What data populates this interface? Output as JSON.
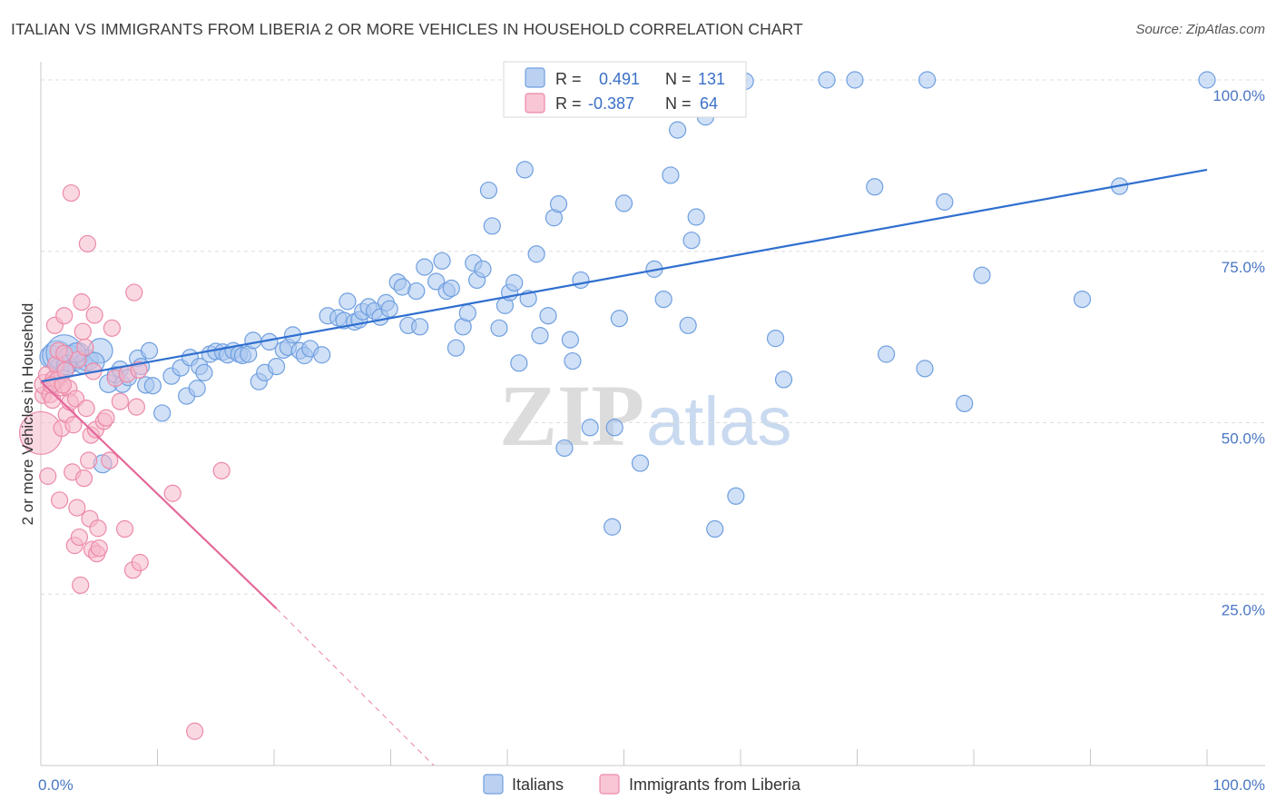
{
  "header": {
    "title": "ITALIAN VS IMMIGRANTS FROM LIBERIA 2 OR MORE VEHICLES IN HOUSEHOLD CORRELATION CHART",
    "source": "Source: ZipAtlas.com"
  },
  "watermark": {
    "zip": "ZIP",
    "atlas": "atlas"
  },
  "colors": {
    "blue_fill": "#a9c6ee",
    "blue_stroke": "#6f9fe0",
    "blue_line": "#2f6fcf",
    "pink_fill": "#f6b8cb",
    "pink_stroke": "#ec8aa8",
    "pink_line": "#e4689a",
    "tick_text": "#4a77c4",
    "grid": "#dddddd"
  },
  "legend": {
    "rows": [
      {
        "r_label": "R = ",
        "r_value": "0.491",
        "n_label": "N = ",
        "n_value": "131",
        "series": "blue"
      },
      {
        "r_label": "R = ",
        "r_value": "-0.387",
        "n_label": "N = ",
        "n_value": "64",
        "series": "pink"
      }
    ]
  },
  "bottom_legend": [
    "Italians",
    "Immigrants from Liberia"
  ],
  "chart_data": {
    "type": "scatter",
    "title": "ITALIAN VS IMMIGRANTS FROM LIBERIA 2 OR MORE VEHICLES IN HOUSEHOLD CORRELATION CHART",
    "ylabel": "2 or more Vehicles in Household",
    "xlabel": "",
    "xlim": [
      0,
      100
    ],
    "ylim": [
      0,
      101
    ],
    "x_ticks": [
      "0.0%",
      "100.0%"
    ],
    "y_ticks": [
      {
        "value": 100,
        "label": "100.0%"
      },
      {
        "value": 75,
        "label": "75.0%"
      },
      {
        "value": 50,
        "label": "50.0%"
      },
      {
        "value": 25,
        "label": "25.0%"
      }
    ],
    "grid": true,
    "legend_position": "top-center",
    "series": [
      {
        "name": "Italians",
        "color": "blue",
        "trend": {
          "x": [
            0,
            100
          ],
          "y": [
            56.0,
            86.9
          ]
        },
        "points": [
          [
            0.9,
            59.6,
            14
          ],
          [
            1.4,
            59.8,
            18
          ],
          [
            1.6,
            58.0,
            12
          ],
          [
            2.0,
            60.2,
            22
          ],
          [
            2.6,
            59.3,
            16
          ],
          [
            3.2,
            60.0,
            14
          ],
          [
            3.6,
            58.6,
            12
          ],
          [
            4.0,
            59.1,
            13
          ],
          [
            5.1,
            60.5,
            15
          ],
          [
            4.6,
            58.8,
            12
          ],
          [
            5.8,
            55.7,
            11
          ],
          [
            6.4,
            57.0,
            10
          ],
          [
            7.0,
            55.6,
            10
          ],
          [
            8.3,
            59.4,
            10
          ],
          [
            8.6,
            58.2,
            10
          ],
          [
            9.0,
            55.5,
            10
          ],
          [
            9.6,
            55.4,
            10
          ],
          [
            10.4,
            51.4,
            10
          ],
          [
            11.2,
            56.8,
            10
          ],
          [
            12.0,
            58.0,
            10
          ],
          [
            12.5,
            53.9,
            10
          ],
          [
            12.8,
            59.5,
            10
          ],
          [
            13.4,
            55.0,
            10
          ],
          [
            13.6,
            58.2,
            10
          ],
          [
            14.0,
            57.3,
            10
          ],
          [
            14.5,
            60.0,
            10
          ],
          [
            15.0,
            60.4,
            10
          ],
          [
            15.6,
            60.3,
            10
          ],
          [
            16.0,
            59.9,
            10
          ],
          [
            16.5,
            60.5,
            10
          ],
          [
            17.0,
            60.0,
            10
          ],
          [
            17.3,
            59.8,
            10
          ],
          [
            17.8,
            60.0,
            10
          ],
          [
            18.2,
            62.0,
            10
          ],
          [
            18.7,
            56.0,
            10
          ],
          [
            19.2,
            57.3,
            10
          ],
          [
            19.6,
            61.8,
            10
          ],
          [
            20.2,
            58.2,
            10
          ],
          [
            20.8,
            60.6,
            10
          ],
          [
            21.2,
            61.0,
            10
          ],
          [
            21.6,
            62.8,
            10
          ],
          [
            22.2,
            60.5,
            10
          ],
          [
            22.6,
            59.8,
            10
          ],
          [
            23.1,
            60.8,
            10
          ],
          [
            24.1,
            59.9,
            10
          ],
          [
            24.6,
            65.6,
            10
          ],
          [
            25.5,
            65.3,
            10
          ],
          [
            26.0,
            64.9,
            10
          ],
          [
            26.3,
            67.7,
            10
          ],
          [
            26.9,
            64.7,
            10
          ],
          [
            27.3,
            65.0,
            10
          ],
          [
            27.6,
            66.2,
            10
          ],
          [
            28.1,
            66.9,
            10
          ],
          [
            28.6,
            66.3,
            10
          ],
          [
            29.1,
            65.4,
            10
          ],
          [
            29.6,
            67.5,
            10
          ],
          [
            29.9,
            66.6,
            10
          ],
          [
            30.6,
            70.5,
            10
          ],
          [
            31.0,
            69.8,
            10
          ],
          [
            31.5,
            64.2,
            10
          ],
          [
            32.2,
            69.2,
            10
          ],
          [
            32.5,
            64.0,
            10
          ],
          [
            32.9,
            72.7,
            10
          ],
          [
            33.9,
            70.6,
            10
          ],
          [
            34.4,
            73.6,
            10
          ],
          [
            34.8,
            69.2,
            10
          ],
          [
            35.2,
            69.6,
            10
          ],
          [
            35.6,
            60.9,
            10
          ],
          [
            36.2,
            64.0,
            10
          ],
          [
            36.6,
            66.0,
            10
          ],
          [
            37.1,
            73.3,
            10
          ],
          [
            37.4,
            70.8,
            10
          ],
          [
            37.9,
            72.4,
            10
          ],
          [
            38.4,
            83.9,
            10
          ],
          [
            38.7,
            78.7,
            10
          ],
          [
            39.3,
            63.8,
            10
          ],
          [
            39.8,
            67.1,
            10
          ],
          [
            40.2,
            69.0,
            10
          ],
          [
            40.6,
            70.4,
            10
          ],
          [
            41.0,
            58.7,
            10
          ],
          [
            41.5,
            86.9,
            10
          ],
          [
            41.8,
            68.1,
            10
          ],
          [
            42.5,
            74.6,
            10
          ],
          [
            42.8,
            62.7,
            10
          ],
          [
            43.5,
            65.6,
            10
          ],
          [
            44.0,
            79.9,
            10
          ],
          [
            44.4,
            81.9,
            10
          ],
          [
            44.9,
            46.3,
            10
          ],
          [
            45.4,
            62.1,
            10
          ],
          [
            45.6,
            59.0,
            10
          ],
          [
            46.3,
            70.8,
            10
          ],
          [
            47.1,
            49.3,
            10
          ],
          [
            49.0,
            34.8,
            10
          ],
          [
            49.2,
            49.3,
            10
          ],
          [
            49.6,
            65.2,
            10
          ],
          [
            50.0,
            82.0,
            10
          ],
          [
            51.4,
            44.1,
            10
          ],
          [
            52.6,
            72.4,
            10
          ],
          [
            53.4,
            68.0,
            10
          ],
          [
            54.0,
            86.1,
            10
          ],
          [
            54.6,
            92.7,
            10
          ],
          [
            55.5,
            64.2,
            10
          ],
          [
            55.8,
            76.6,
            10
          ],
          [
            56.2,
            80.0,
            10
          ],
          [
            57.0,
            94.6,
            10
          ],
          [
            57.8,
            34.5,
            10
          ],
          [
            59.6,
            39.3,
            10
          ],
          [
            60.4,
            99.8,
            10
          ],
          [
            63.7,
            56.3,
            10
          ],
          [
            63.0,
            62.3,
            10
          ],
          [
            67.4,
            100.0,
            10
          ],
          [
            69.8,
            100.0,
            10
          ],
          [
            71.5,
            84.4,
            10
          ],
          [
            72.5,
            60.0,
            10
          ],
          [
            75.8,
            57.9,
            10
          ],
          [
            76.0,
            100.0,
            10
          ],
          [
            77.5,
            82.2,
            10
          ],
          [
            79.2,
            52.8,
            10
          ],
          [
            80.7,
            71.5,
            10
          ],
          [
            89.3,
            68.0,
            10
          ],
          [
            92.5,
            84.5,
            10
          ],
          [
            100.0,
            100.0,
            10
          ],
          [
            49.5,
            100.0,
            10
          ],
          [
            51.2,
            100.0,
            10
          ],
          [
            5.3,
            44.0,
            11
          ],
          [
            2.2,
            58.4,
            12
          ],
          [
            3.0,
            60.2,
            12
          ],
          [
            1.1,
            55.8,
            10
          ],
          [
            6.8,
            57.8,
            10
          ],
          [
            7.5,
            56.6,
            10
          ],
          [
            9.3,
            60.5,
            10
          ]
        ]
      },
      {
        "name": "Immigrants from Liberia",
        "color": "pink",
        "trend": {
          "x": [
            0,
            20.2
          ],
          "y": [
            56.0,
            22.9
          ],
          "dashed_to": {
            "x": 33.7,
            "y": 0.0
          }
        },
        "points": [
          [
            0.0,
            48.5,
            26
          ],
          [
            0.2,
            54.0,
            10
          ],
          [
            0.3,
            55.6,
            12
          ],
          [
            0.5,
            57.0,
            10
          ],
          [
            0.6,
            42.2,
            10
          ],
          [
            0.8,
            54.1,
            10
          ],
          [
            1.0,
            53.3,
            10
          ],
          [
            1.1,
            56.4,
            10
          ],
          [
            1.2,
            64.2,
            10
          ],
          [
            1.3,
            58.5,
            10
          ],
          [
            1.4,
            56.2,
            10
          ],
          [
            1.5,
            60.5,
            10
          ],
          [
            1.6,
            38.7,
            10
          ],
          [
            1.7,
            55.1,
            10
          ],
          [
            1.8,
            49.2,
            10
          ],
          [
            2.0,
            65.6,
            10
          ],
          [
            2.1,
            57.6,
            10
          ],
          [
            2.2,
            51.2,
            10
          ],
          [
            2.4,
            55.0,
            10
          ],
          [
            2.5,
            53.0,
            10
          ],
          [
            2.6,
            83.5,
            10
          ],
          [
            2.7,
            42.8,
            10
          ],
          [
            2.8,
            49.7,
            10
          ],
          [
            2.9,
            32.1,
            10
          ],
          [
            3.0,
            53.5,
            10
          ],
          [
            3.1,
            37.6,
            10
          ],
          [
            3.2,
            59.2,
            10
          ],
          [
            3.3,
            33.3,
            10
          ],
          [
            3.4,
            26.3,
            10
          ],
          [
            3.5,
            67.6,
            10
          ],
          [
            3.6,
            63.3,
            10
          ],
          [
            3.7,
            41.9,
            10
          ],
          [
            3.8,
            61.0,
            10
          ],
          [
            3.9,
            52.1,
            10
          ],
          [
            4.0,
            76.1,
            10
          ],
          [
            4.1,
            44.5,
            10
          ],
          [
            4.2,
            36.0,
            10
          ],
          [
            4.3,
            48.2,
            10
          ],
          [
            4.4,
            31.5,
            10
          ],
          [
            4.5,
            57.5,
            10
          ],
          [
            4.6,
            65.7,
            10
          ],
          [
            4.7,
            49.0,
            10
          ],
          [
            4.8,
            30.9,
            10
          ],
          [
            4.9,
            34.6,
            10
          ],
          [
            5.0,
            31.7,
            10
          ],
          [
            5.4,
            50.2,
            10
          ],
          [
            5.6,
            50.7,
            10
          ],
          [
            5.9,
            44.5,
            10
          ],
          [
            6.1,
            63.8,
            10
          ],
          [
            6.4,
            56.5,
            10
          ],
          [
            6.8,
            53.1,
            10
          ],
          [
            7.2,
            34.5,
            10
          ],
          [
            7.4,
            57.1,
            10
          ],
          [
            7.9,
            28.5,
            10
          ],
          [
            8.0,
            69.0,
            10
          ],
          [
            8.2,
            52.3,
            10
          ],
          [
            8.4,
            57.7,
            10
          ],
          [
            8.5,
            29.6,
            10
          ],
          [
            11.3,
            39.7,
            10
          ],
          [
            13.2,
            5.0,
            10
          ],
          [
            15.5,
            43.0,
            10
          ],
          [
            0.9,
            55.5,
            10
          ],
          [
            2.0,
            60.1,
            10
          ],
          [
            1.9,
            55.5,
            10
          ]
        ]
      }
    ]
  }
}
